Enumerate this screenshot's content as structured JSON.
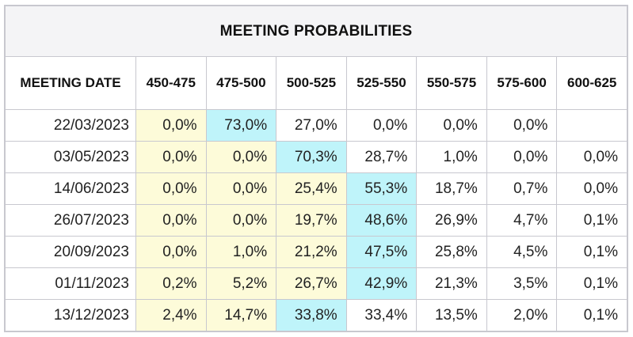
{
  "chart_data": {
    "type": "table",
    "title": "MEETING PROBABILITIES",
    "columns": [
      "MEETING DATE",
      "450-475",
      "475-500",
      "500-525",
      "525-550",
      "550-575",
      "575-600",
      "600-625"
    ],
    "rows": [
      {
        "date": "22/03/2023",
        "values": [
          "0,0%",
          "73,0%",
          "27,0%",
          "0,0%",
          "0,0%",
          "0,0%",
          ""
        ],
        "styles": [
          "yellow",
          "blue",
          "white",
          "white",
          "white",
          "white",
          "white"
        ]
      },
      {
        "date": "03/05/2023",
        "values": [
          "0,0%",
          "0,0%",
          "70,3%",
          "28,7%",
          "1,0%",
          "0,0%",
          "0,0%"
        ],
        "styles": [
          "yellow",
          "yellow",
          "blue",
          "white",
          "white",
          "white",
          "white"
        ]
      },
      {
        "date": "14/06/2023",
        "values": [
          "0,0%",
          "0,0%",
          "25,4%",
          "55,3%",
          "18,7%",
          "0,7%",
          "0,0%"
        ],
        "styles": [
          "yellow",
          "yellow",
          "yellow",
          "blue",
          "white",
          "white",
          "white"
        ]
      },
      {
        "date": "26/07/2023",
        "values": [
          "0,0%",
          "0,0%",
          "19,7%",
          "48,6%",
          "26,9%",
          "4,7%",
          "0,1%"
        ],
        "styles": [
          "yellow",
          "yellow",
          "yellow",
          "blue",
          "white",
          "white",
          "white"
        ]
      },
      {
        "date": "20/09/2023",
        "values": [
          "0,0%",
          "1,0%",
          "21,2%",
          "47,5%",
          "25,8%",
          "4,5%",
          "0,1%"
        ],
        "styles": [
          "yellow",
          "yellow",
          "yellow",
          "blue",
          "white",
          "white",
          "white"
        ]
      },
      {
        "date": "01/11/2023",
        "values": [
          "0,2%",
          "5,2%",
          "26,7%",
          "42,9%",
          "21,3%",
          "3,5%",
          "0,1%"
        ],
        "styles": [
          "yellow",
          "yellow",
          "yellow",
          "blue",
          "white",
          "white",
          "white"
        ]
      },
      {
        "date": "13/12/2023",
        "values": [
          "2,4%",
          "14,7%",
          "33,8%",
          "33,4%",
          "13,5%",
          "2,0%",
          "0,1%"
        ],
        "styles": [
          "yellow",
          "yellow",
          "blue",
          "white",
          "white",
          "white",
          "white"
        ]
      }
    ]
  },
  "colors": {
    "yellow": "#fdfbd9",
    "blue": "#bff4fa",
    "white": "#ffffff"
  }
}
